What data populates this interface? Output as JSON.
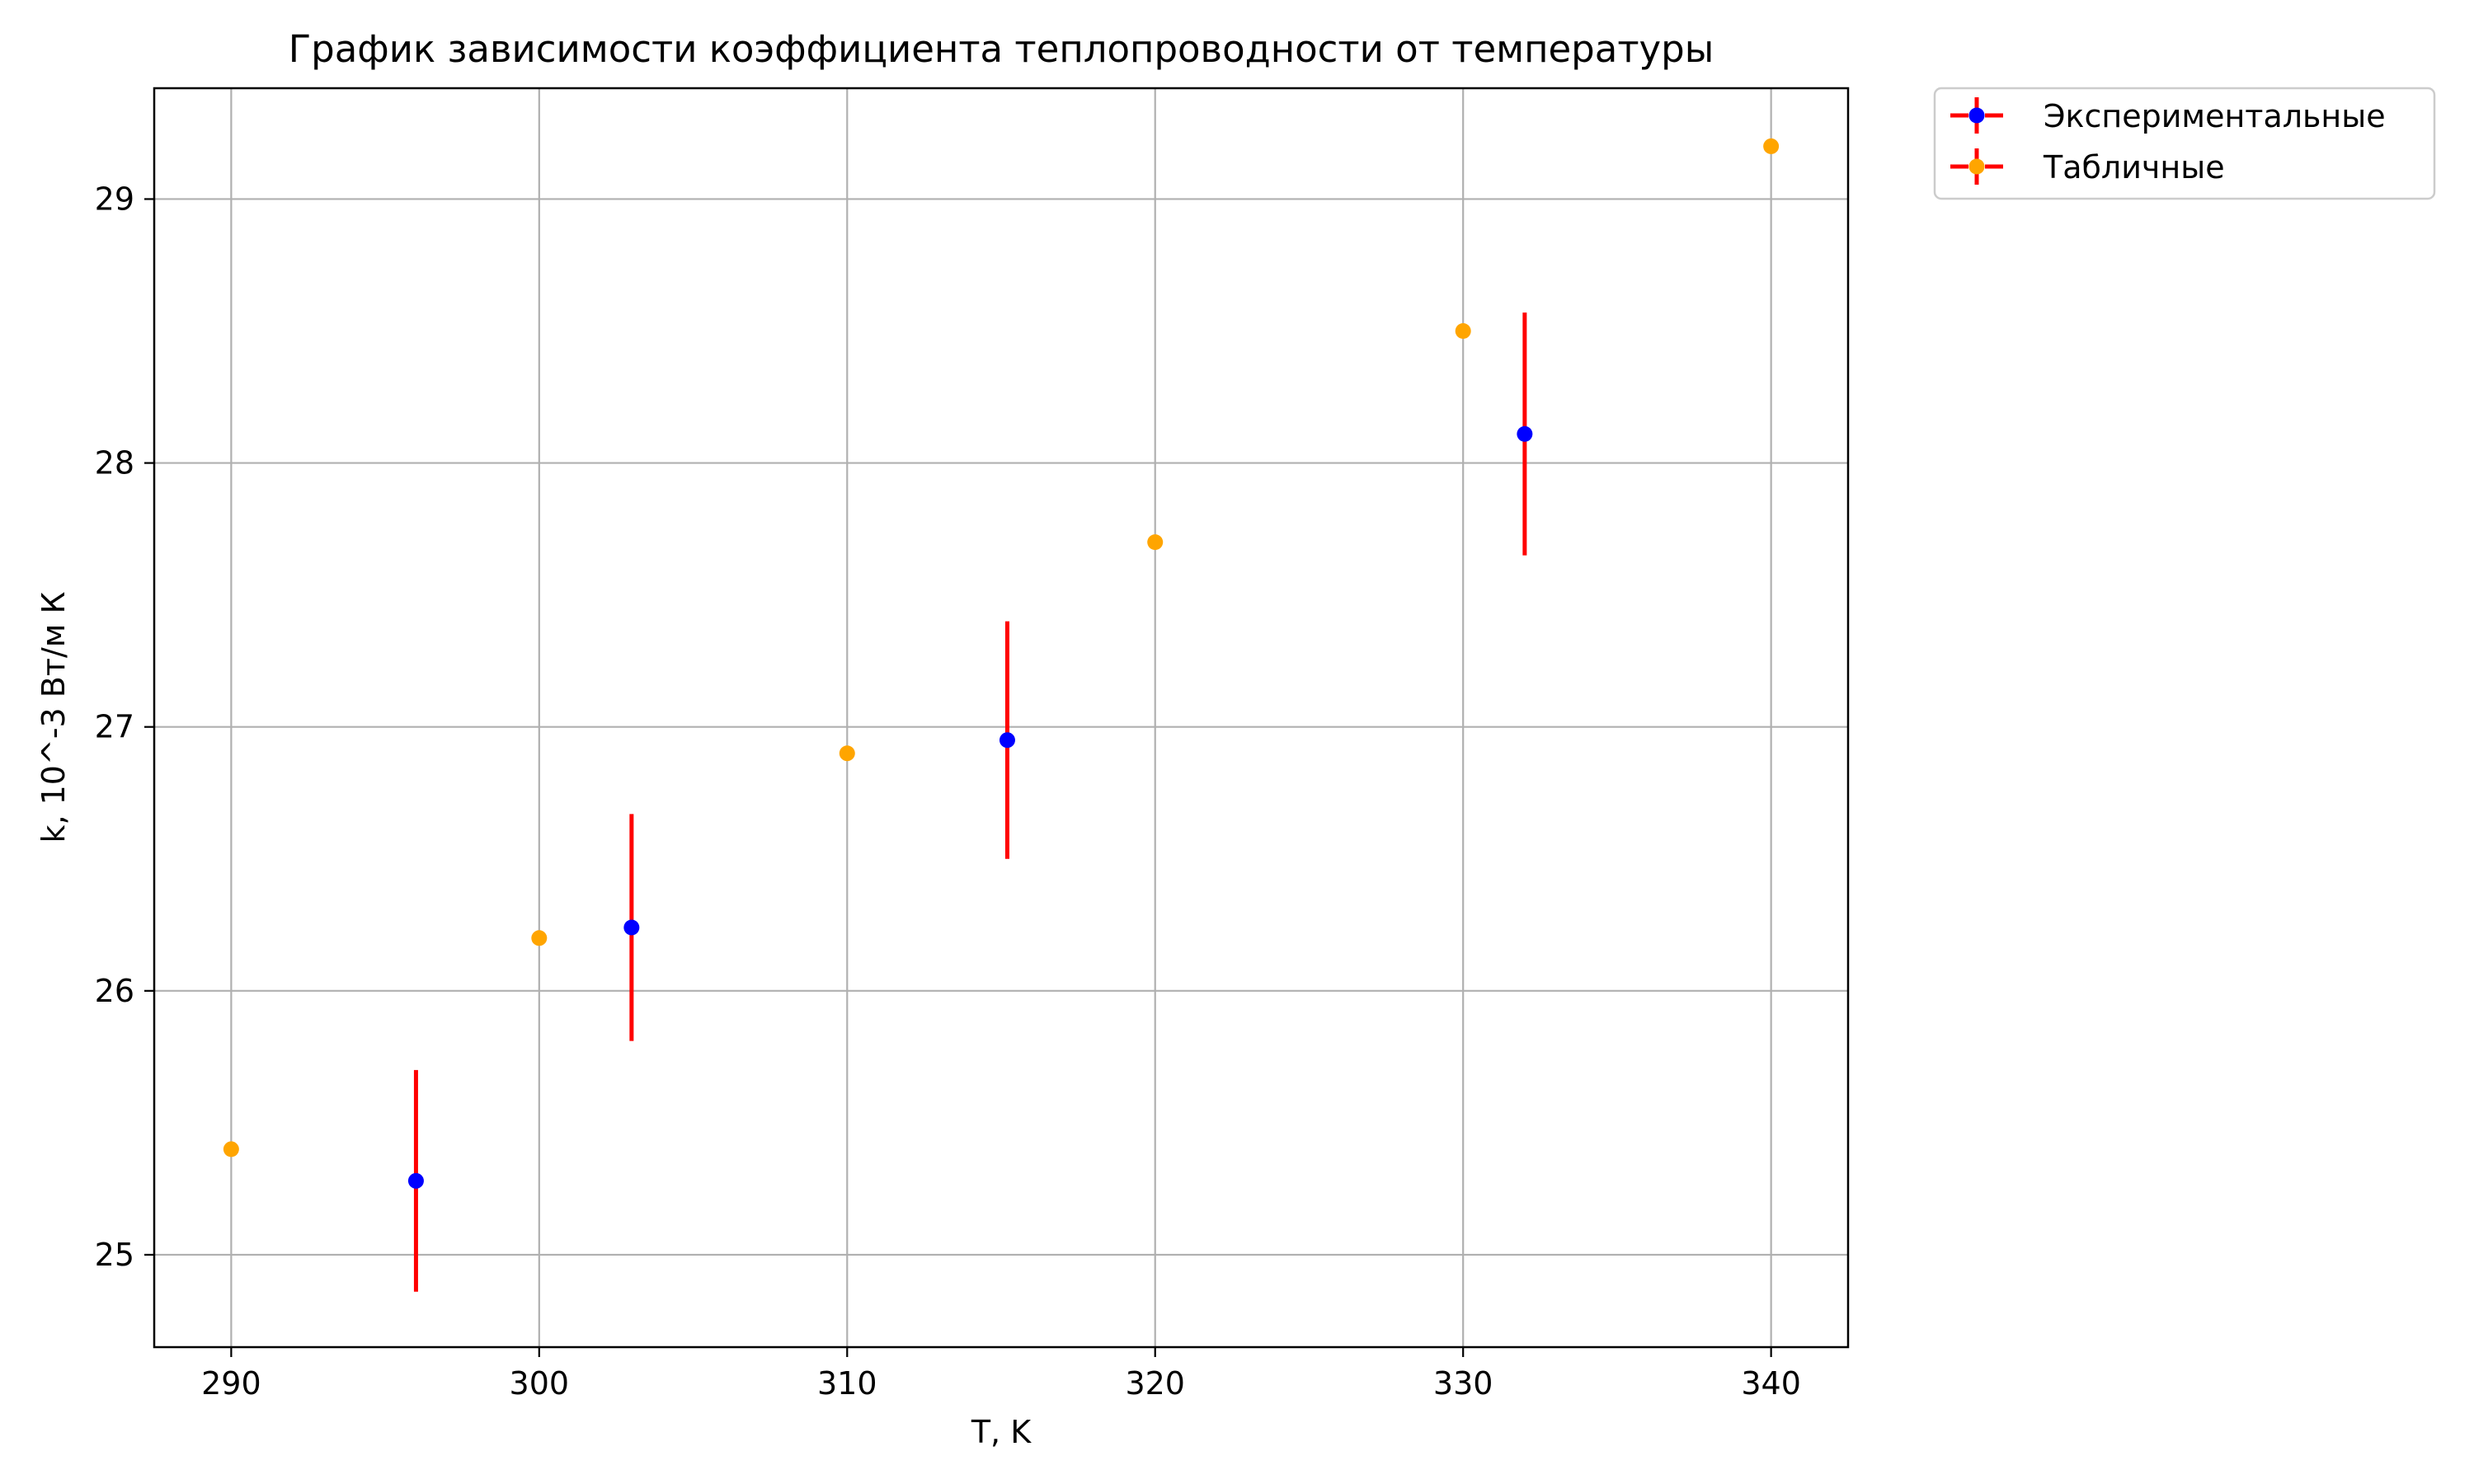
{
  "chart_data": {
    "type": "scatter",
    "title": "График зависимости коэффициента теплопроводности от температуры",
    "xlabel": "T, K",
    "ylabel": "k, 10^-3 Вт/м К",
    "xlim": [
      287.5,
      342.5
    ],
    "ylim": [
      24.65,
      29.42
    ],
    "x_ticks": [
      290,
      300,
      310,
      320,
      330,
      340
    ],
    "y_ticks": [
      25,
      26,
      27,
      28,
      29
    ],
    "grid": true,
    "legend_position": "outside-top-right",
    "series": [
      {
        "name": "Экспериментальные",
        "marker_color": "#0000ff",
        "errorbar_color": "#ff0000",
        "points": [
          {
            "x": 296,
            "y": 25.28,
            "yerr": 0.42
          },
          {
            "x": 303,
            "y": 26.24,
            "yerr": 0.43
          },
          {
            "x": 315.2,
            "y": 26.95,
            "yerr": 0.45
          },
          {
            "x": 332,
            "y": 28.11,
            "yerr": 0.46
          }
        ]
      },
      {
        "name": "Табличные",
        "marker_color": "#ffa500",
        "errorbar_color": "#ff0000",
        "points": [
          {
            "x": 290,
            "y": 25.4
          },
          {
            "x": 300,
            "y": 26.2
          },
          {
            "x": 310,
            "y": 26.9
          },
          {
            "x": 320,
            "y": 27.7
          },
          {
            "x": 330,
            "y": 28.5
          },
          {
            "x": 340,
            "y": 29.2
          }
        ]
      }
    ]
  }
}
